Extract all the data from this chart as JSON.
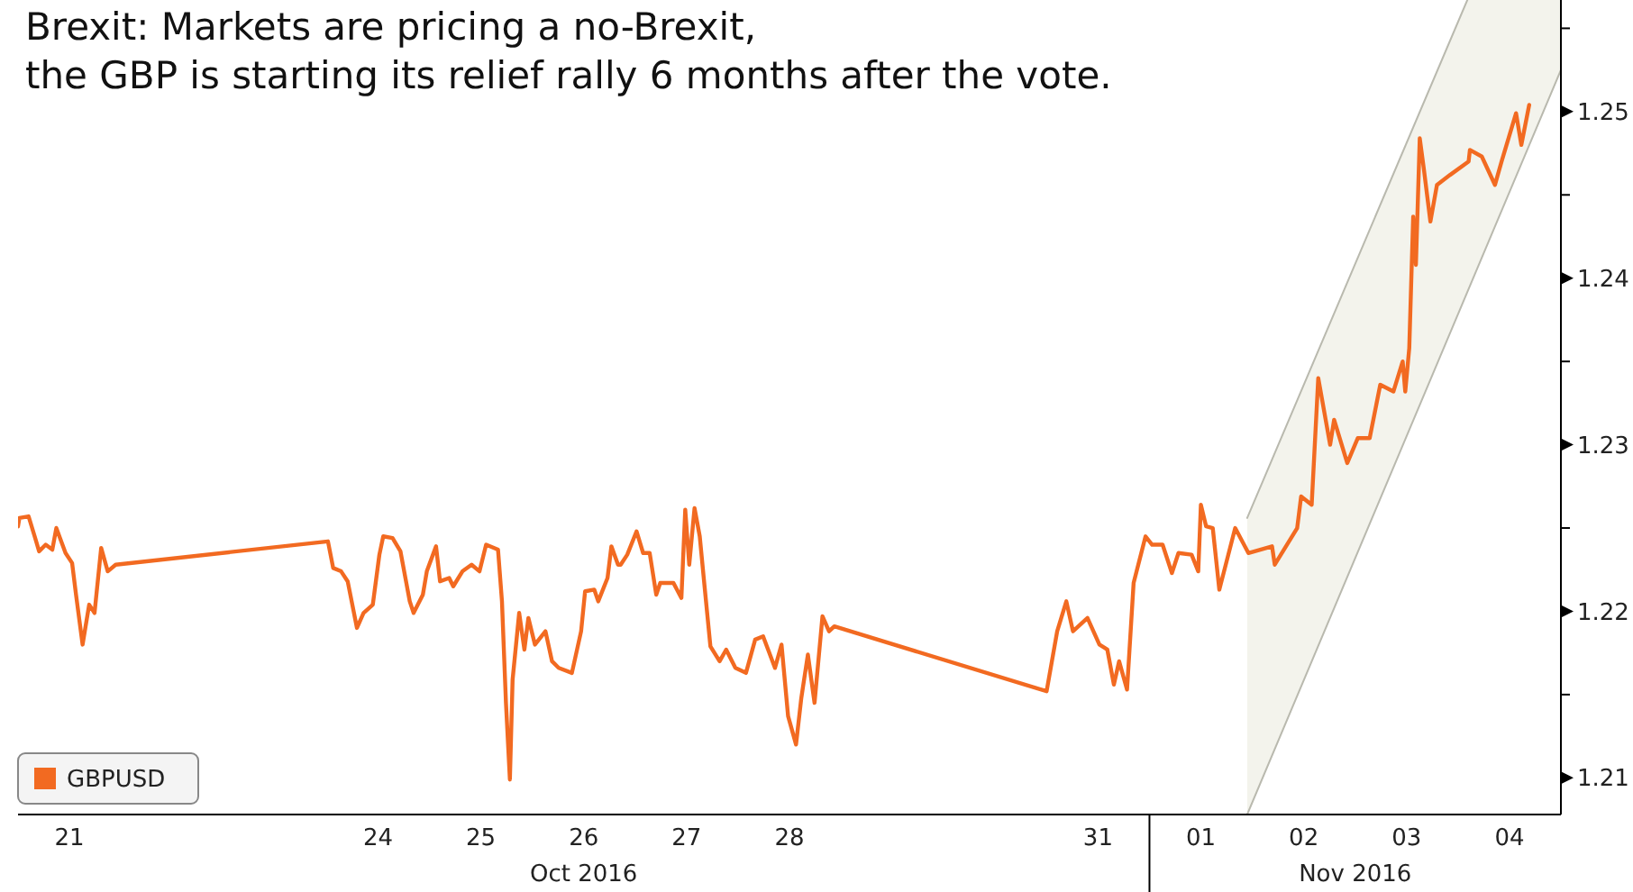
{
  "chart_data": {
    "type": "line",
    "title": "Brexit: Markets are pricing a no-Brexit,\nthe GBP is starting its relief rally 6 months after the vote.",
    "annotations": [
      "Oct 2016",
      "Nov 2016"
    ],
    "xlim": [
      "2016-10-21T00:00",
      "2016-11-05T00:00"
    ],
    "xticks": [
      {
        "value": "2016-10-21T12:00",
        "label": "21"
      },
      {
        "value": "2016-10-24T12:00",
        "label": "24"
      },
      {
        "value": "2016-10-25T12:00",
        "label": "25"
      },
      {
        "value": "2016-10-26T12:00",
        "label": "26"
      },
      {
        "value": "2016-10-27T12:00",
        "label": "27"
      },
      {
        "value": "2016-10-28T12:00",
        "label": "28"
      },
      {
        "value": "2016-10-31T12:00",
        "label": "31"
      },
      {
        "value": "2016-11-01T12:00",
        "label": "01"
      },
      {
        "value": "2016-11-02T12:00",
        "label": "02"
      },
      {
        "value": "2016-11-03T12:00",
        "label": "03"
      },
      {
        "value": "2016-11-04T12:00",
        "label": "04"
      }
    ],
    "ylim": [
      1.2078,
      1.2567
    ],
    "yticks": [
      1.21,
      {
        "value": 1.215,
        "label": null
      },
      1.22,
      {
        "value": 1.225,
        "label": null
      },
      1.23,
      {
        "value": 1.235,
        "label": null
      },
      1.24,
      {
        "value": 1.245,
        "label": null
      },
      1.25,
      {
        "value": 1.255,
        "label": null
      }
    ],
    "grid": false,
    "legend": "bottom left",
    "line_style": "solid",
    "series": [
      {
        "name": "GBPUSD",
        "color": "#f26a21",
        "x": [
          "2016-10-21T00:00",
          "2016-10-21T00:19",
          "2016-10-21T02:28",
          "2016-10-21T04:00",
          "2016-10-21T04:55",
          "2016-10-21T06:27",
          "2016-10-21T08:00",
          "2016-10-21T08:56",
          "2016-10-21T11:05",
          "2016-10-21T12:37",
          "2016-10-21T13:32",
          "2016-10-21T15:04",
          "2016-10-21T16:36",
          "2016-10-21T17:51",
          "2016-10-21T19:24",
          "2016-10-21T20:56",
          "2016-10-21T22:47",
          "2016-10-24T00:19",
          "2016-10-24T01:32",
          "2016-10-24T03:23",
          "2016-10-24T04:55",
          "2016-10-24T07:05",
          "2016-10-24T08:37",
          "2016-10-24T10:47",
          "2016-10-24T12:19",
          "2016-10-24T13:13",
          "2016-10-24T15:23",
          "2016-10-24T17:14",
          "2016-10-24T19:24",
          "2016-10-24T20:18",
          "2016-10-24T22:28",
          "2016-10-24T23:23",
          "2016-10-25T01:32",
          "2016-10-25T02:28",
          "2016-10-25T04:36",
          "2016-10-25T05:33",
          "2016-10-25T07:42",
          "2016-10-25T09:50",
          "2016-10-25T11:41",
          "2016-10-25T13:13",
          "2016-10-25T16:00",
          "2016-10-25T16:55",
          "2016-10-25T17:51",
          "2016-10-25T18:46",
          "2016-10-25T19:24",
          "2016-10-25T20:56",
          "2016-10-25T22:09",
          "2016-10-25T23:05",
          "2016-10-26T00:37",
          "2016-10-26T03:04",
          "2016-10-26T04:36",
          "2016-10-26T06:09",
          "2016-10-26T09:14",
          "2016-10-26T11:23",
          "2016-10-26T12:19",
          "2016-10-26T14:28",
          "2016-10-26T15:23",
          "2016-10-26T17:33",
          "2016-10-26T18:27",
          "2016-10-26T20:00",
          "2016-10-26T20:37",
          "2016-10-26T22:09",
          "2016-10-27T00:19",
          "2016-10-27T01:51",
          "2016-10-27T03:23",
          "2016-10-27T04:55",
          "2016-10-27T05:51",
          "2016-10-27T08:56",
          "2016-10-27T10:47",
          "2016-10-27T11:41",
          "2016-10-27T12:37",
          "2016-10-27T13:51",
          "2016-10-27T15:04",
          "2016-10-27T16:00",
          "2016-10-27T17:33",
          "2016-10-27T19:42",
          "2016-10-27T21:14",
          "2016-10-27T23:23",
          "2016-10-28T01:51",
          "2016-10-28T04:00",
          "2016-10-28T05:51",
          "2016-10-28T08:37",
          "2016-10-28T10:09",
          "2016-10-28T11:41",
          "2016-10-28T13:32",
          "2016-10-28T14:46",
          "2016-10-28T16:18",
          "2016-10-28T17:51",
          "2016-10-28T19:42",
          "2016-10-28T21:14",
          "2016-10-28T22:28",
          "2016-10-31T00:00",
          "2016-10-31T02:28",
          "2016-10-31T04:36",
          "2016-10-31T06:09",
          "2016-10-31T09:32",
          "2016-10-31T12:19",
          "2016-10-31T14:10",
          "2016-10-31T15:42",
          "2016-10-31T16:55",
          "2016-10-31T18:46",
          "2016-10-31T20:18",
          "2016-10-31T23:05",
          "2016-11-01T00:37",
          "2016-11-01T03:04",
          "2016-11-01T05:14",
          "2016-11-01T06:46",
          "2016-11-01T09:50",
          "2016-11-01T11:23",
          "2016-11-01T12:00",
          "2016-11-01T13:13",
          "2016-11-01T14:46",
          "2016-11-01T16:18",
          "2016-11-01T20:00",
          "2016-11-01T23:05",
          "2016-11-02T04:36",
          "2016-11-02T05:14",
          "2016-11-02T10:28",
          "2016-11-02T11:23",
          "2016-11-02T13:51",
          "2016-11-02T15:23",
          "2016-11-02T18:09",
          "2016-11-02T19:05",
          "2016-11-02T22:09",
          "2016-11-03T00:37",
          "2016-11-03T03:23",
          "2016-11-03T05:51",
          "2016-11-03T08:56",
          "2016-11-03T11:05",
          "2016-11-03T11:41",
          "2016-11-03T12:37",
          "2016-11-03T13:32",
          "2016-11-03T14:10",
          "2016-11-03T15:04",
          "2016-11-03T16:00",
          "2016-11-03T17:33",
          "2016-11-03T19:05",
          "2016-11-03T22:09",
          "2016-11-04T02:28",
          "2016-11-04T02:46",
          "2016-11-04T05:33",
          "2016-11-04T08:37",
          "2016-11-04T10:09",
          "2016-11-04T13:32",
          "2016-11-04T14:46",
          "2016-11-04T16:36"
        ],
        "values": [
          1.2251,
          1.2256,
          1.2257,
          1.2244,
          1.2236,
          1.224,
          1.2237,
          1.225,
          1.2235,
          1.2229,
          1.221,
          1.218,
          1.2204,
          1.2199,
          1.2238,
          1.2224,
          1.2228,
          1.2242,
          1.2226,
          1.2224,
          1.2218,
          1.219,
          1.2199,
          1.2204,
          1.2234,
          1.2245,
          1.2244,
          1.2236,
          1.2206,
          1.2199,
          1.221,
          1.2224,
          1.2239,
          1.2218,
          1.222,
          1.2215,
          1.2224,
          1.2228,
          1.2224,
          1.224,
          1.2237,
          1.2206,
          1.2145,
          1.2099,
          1.2159,
          1.2199,
          1.2177,
          1.2196,
          1.218,
          1.2188,
          1.217,
          1.2166,
          1.2163,
          1.2188,
          1.2212,
          1.2213,
          1.2206,
          1.222,
          1.2239,
          1.2228,
          1.2228,
          1.2234,
          1.2248,
          1.2235,
          1.2235,
          1.221,
          1.2217,
          1.2217,
          1.2208,
          1.2261,
          1.2228,
          1.2262,
          1.2245,
          1.222,
          1.2179,
          1.217,
          1.2177,
          1.2166,
          1.2163,
          1.2183,
          1.2185,
          1.2166,
          1.218,
          1.2137,
          1.212,
          1.2148,
          1.2174,
          1.2145,
          1.2197,
          1.2188,
          1.2191,
          1.2152,
          1.2188,
          1.2206,
          1.2188,
          1.2196,
          1.218,
          1.2177,
          1.2156,
          1.217,
          1.2153,
          1.2217,
          1.2245,
          1.224,
          1.224,
          1.2223,
          1.2235,
          1.2234,
          1.2224,
          1.2264,
          1.2251,
          1.225,
          1.2213,
          1.225,
          1.2235,
          1.2239,
          1.2228,
          1.225,
          1.2269,
          1.2264,
          1.234,
          1.23,
          1.2315,
          1.2289,
          1.2304,
          1.2304,
          1.2336,
          1.2332,
          1.235,
          1.2332,
          1.2358,
          1.2437,
          1.2408,
          1.2484,
          1.2466,
          1.2434,
          1.2456,
          1.2462,
          1.247,
          1.2477,
          1.2473,
          1.2456,
          1.247,
          1.2499,
          1.248,
          1.2504
        ]
      },
      {
        "color": "#b9b9ae",
        "type": "line",
        "x": [
          "2016-11-01T22:48",
          "2016-11-04T02:10"
        ],
        "values": [
          1.2256,
          1.2567
        ]
      },
      {
        "color": "#b9b9ae",
        "type": "line",
        "x": [
          "2016-11-01T22:48",
          "2016-11-05T00:00"
        ],
        "values": [
          1.2078,
          1.2525
        ]
      }
    ]
  }
}
